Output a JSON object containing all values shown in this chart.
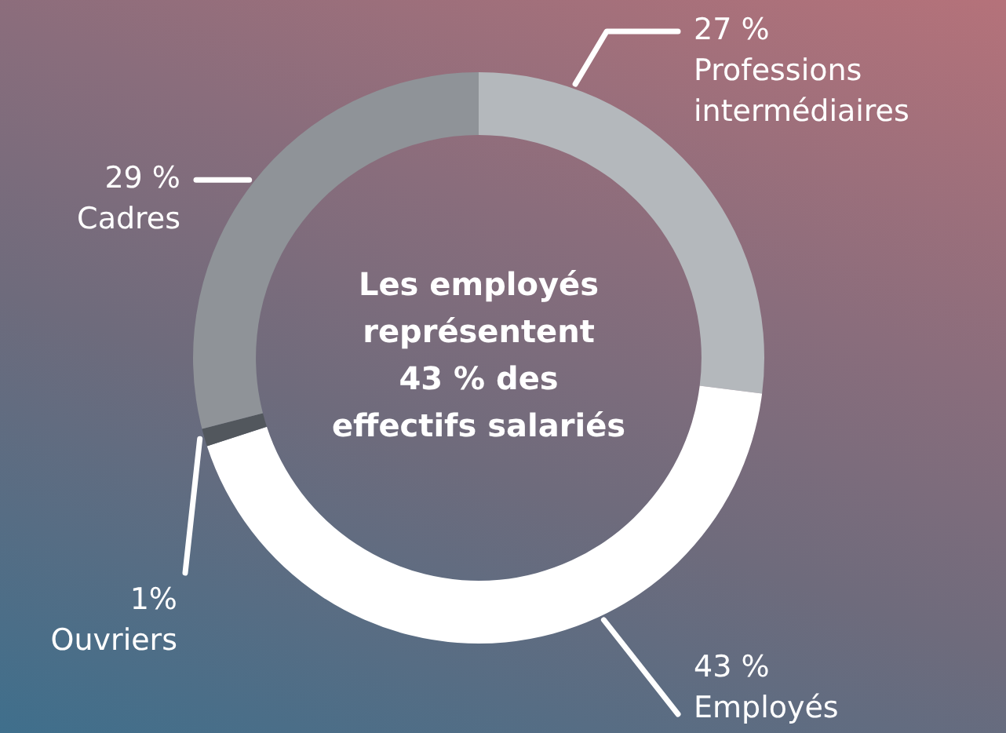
{
  "chart_data": {
    "type": "donut",
    "categories": [
      "Professions intermédiaires",
      "Employés",
      "Ouvriers",
      "Cadres"
    ],
    "values": [
      27,
      43,
      1,
      29
    ],
    "value_labels": [
      "27 %",
      "43 %",
      "1%",
      "29 %"
    ],
    "colors": [
      "#b4b8bc",
      "#ffffff",
      "#52575d",
      "#8f9398"
    ],
    "annotations": [
      "Les employés\nreprésentent\n43 % des\neffectifs salariés"
    ],
    "legend": false
  }
}
